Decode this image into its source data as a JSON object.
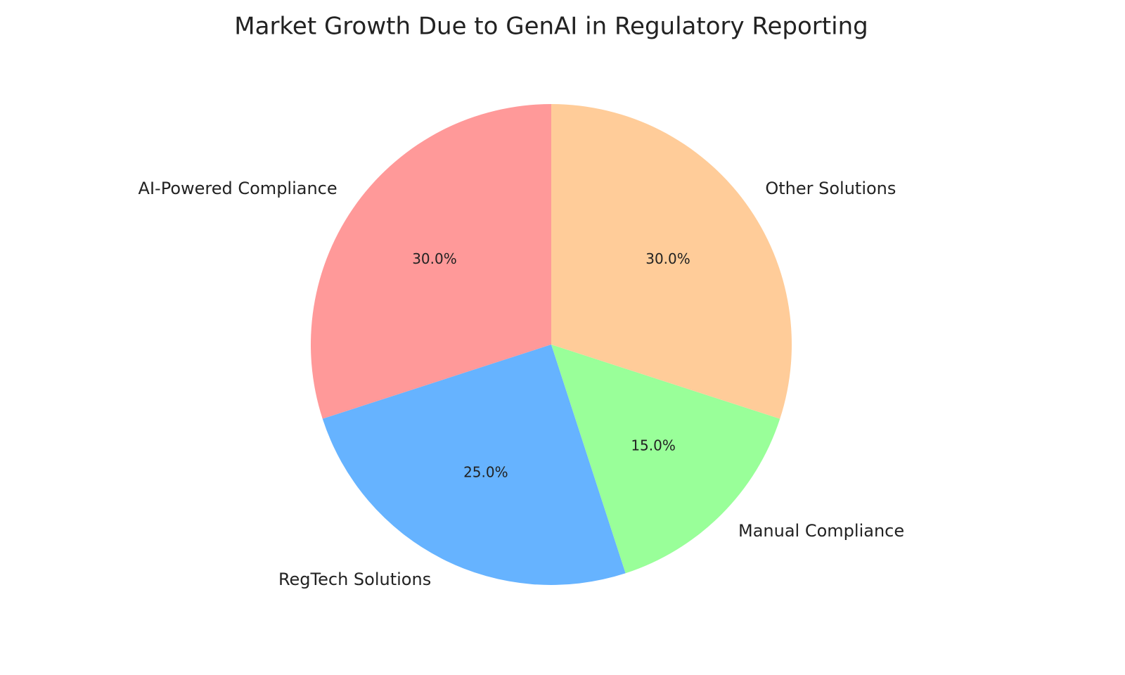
{
  "chart_data": {
    "type": "pie",
    "title": "Market Growth Due to GenAI in Regulatory Reporting",
    "categories": [
      "AI-Powered Compliance",
      "RegTech Solutions",
      "Manual Compliance",
      "Other Solutions"
    ],
    "values": [
      30,
      25,
      15,
      30
    ],
    "value_labels": [
      "30.0%",
      "25.0%",
      "15.0%",
      "30.0%"
    ],
    "colors": [
      "#ff9999",
      "#66b3ff",
      "#99ff99",
      "#ffcc99"
    ]
  }
}
